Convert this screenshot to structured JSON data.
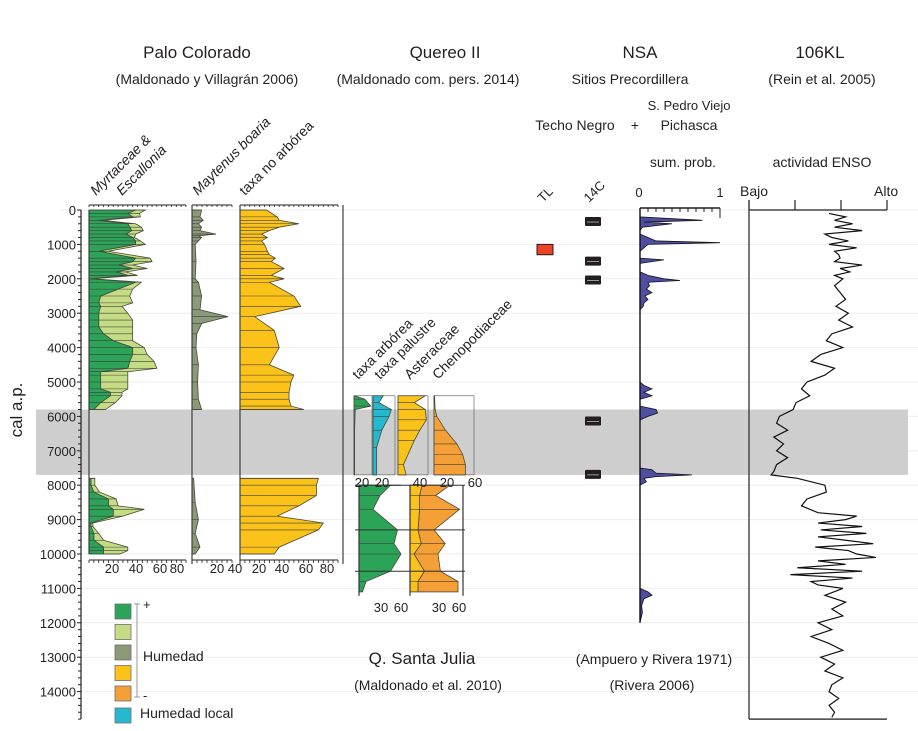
{
  "chart_data": {
    "type": "area",
    "title": "",
    "ylabel": "cal a.p.",
    "ylim": [
      0,
      14800
    ],
    "yticks": [
      0,
      1000,
      2000,
      3000,
      4000,
      5000,
      6000,
      7000,
      8000,
      9000,
      10000,
      11000,
      12000,
      13000,
      14000
    ],
    "gap_band": {
      "from": 5800,
      "to": 7700
    },
    "colors": {
      "dark_green": "#2ba457",
      "light_green": "#c4dd84",
      "grey_green": "#8a9a78",
      "yellow": "#fbc31a",
      "orange": "#f5a037",
      "cyan": "#24b9d0",
      "red": "#ee4127",
      "blue": "#4e4fa3",
      "band": "#cfcece"
    },
    "sites": [
      {
        "name": "Palo Colorado",
        "ref": "(Maldonado y Villagrán 2006)"
      },
      {
        "name": "Quereo II",
        "ref": "(Maldonado com. pers. 2014)"
      },
      {
        "name": "NSA",
        "ref": "Sitios Precordillera"
      },
      {
        "name": "106KL",
        "ref": "(Rein et al. 2005)"
      }
    ],
    "nsa_sites": {
      "left": "Techo Negro",
      "plus": "+",
      "top": "S. Pedro Viejo",
      "right": "Pichasca"
    },
    "palo_colorado": {
      "myrtaceae": {
        "label1": "Myrtaceae &",
        "label2": "Escallonia",
        "ticks": [
          "20",
          "40",
          "60",
          "80"
        ],
        "xlim": [
          0,
          100
        ],
        "ages": [
          0,
          100,
          200,
          300,
          400,
          500,
          600,
          700,
          800,
          900,
          1000,
          1200,
          1400,
          1500,
          1600,
          1700,
          1800,
          1900,
          2000,
          2100,
          2300,
          2500,
          2700,
          2800,
          3000,
          3200,
          3400,
          3600,
          3800,
          4000,
          4200,
          4400,
          4600,
          4700,
          4800,
          5000,
          5200,
          5300,
          5400,
          5600,
          5800,
          7800,
          8000,
          8200,
          8400,
          8600,
          8700,
          8900,
          9100,
          9200,
          9400,
          9600,
          9800,
          9900,
          10000
        ],
        "myrtaceae": [
          48,
          40,
          45,
          10,
          40,
          42,
          44,
          38,
          45,
          48,
          48,
          10,
          48,
          45,
          30,
          45,
          28,
          40,
          1,
          48,
          30,
          12,
          10,
          12,
          10,
          10,
          10,
          15,
          25,
          45,
          45,
          42,
          40,
          12,
          12,
          12,
          12,
          22,
          22,
          12,
          5,
          2,
          2,
          5,
          20,
          20,
          25,
          25,
          2,
          2,
          5,
          5,
          15,
          15,
          15
        ],
        "escallonia": [
          10,
          12,
          8,
          4,
          8,
          12,
          12,
          10,
          2,
          5,
          10,
          10,
          15,
          20,
          15,
          15,
          10,
          10,
          2,
          6,
          15,
          30,
          35,
          22,
          30,
          35,
          35,
          30,
          20,
          12,
          15,
          25,
          30,
          28,
          28,
          28,
          28,
          12,
          12,
          15,
          12,
          4,
          4,
          6,
          8,
          10,
          32,
          10,
          2,
          2,
          5,
          10,
          25,
          25,
          17
        ]
      },
      "maytenus": {
        "label": "Maytenus boaria",
        "ticks": [
          "20",
          "40"
        ],
        "xlim": [
          0,
          50
        ],
        "ages": [
          0,
          200,
          300,
          400,
          500,
          600,
          700,
          750,
          800,
          900,
          1000,
          1500,
          2000,
          2100,
          2500,
          2900,
          3100,
          3300,
          3600,
          4000,
          4500,
          5000,
          5500,
          5800,
          7800,
          8500,
          9000,
          9400,
          9800,
          10000
        ],
        "values": [
          12,
          10,
          14,
          8,
          12,
          10,
          30,
          8,
          12,
          8,
          4,
          5,
          4,
          8,
          12,
          10,
          45,
          12,
          6,
          5,
          8,
          7,
          8,
          12,
          2,
          4,
          8,
          4,
          10,
          4
        ]
      },
      "taxa_no_arborea": {
        "label": "taxa no arbórea",
        "ticks": [
          "20",
          "40",
          "60",
          "80"
        ],
        "xlim": [
          0,
          100
        ],
        "ages": [
          0,
          200,
          300,
          400,
          500,
          600,
          700,
          800,
          900,
          1000,
          1200,
          1300,
          1400,
          1500,
          1700,
          1900,
          2000,
          2100,
          2500,
          2800,
          3100,
          3500,
          4000,
          4500,
          4800,
          5000,
          5300,
          5500,
          5700,
          5800,
          7800,
          8000,
          8300,
          8600,
          8900,
          9100,
          9300,
          9800,
          10000
        ],
        "values": [
          27,
          38,
          40,
          60,
          40,
          30,
          22,
          28,
          22,
          25,
          28,
          30,
          36,
          32,
          45,
          32,
          45,
          30,
          55,
          62,
          15,
          35,
          40,
          30,
          55,
          52,
          50,
          50,
          52,
          65,
          80,
          78,
          78,
          60,
          38,
          85,
          80,
          40,
          35
        ]
      }
    },
    "quereo": {
      "taxa_arborea": {
        "label": "taxa arbórea",
        "ticks": [
          "20"
        ],
        "xlim": [
          0,
          30
        ],
        "ages": [
          5400,
          5500,
          5700,
          5800,
          6400,
          7700
        ],
        "values": [
          1,
          18,
          28,
          2,
          1,
          1
        ]
      },
      "taxa_palustre": {
        "label": "taxa palustre",
        "ticks": [
          "20"
        ],
        "xlim": [
          0,
          30
        ],
        "ages": [
          5400,
          5600,
          5800,
          6000,
          6400,
          6900,
          7700
        ],
        "values": [
          14,
          8,
          25,
          22,
          12,
          5,
          5
        ]
      },
      "asteraceae": {
        "label": "Asteraceae",
        "ticks": [
          "40"
        ],
        "xlim": [
          0,
          55
        ],
        "ages": [
          5400,
          5600,
          5800,
          6100,
          6400,
          6700,
          7400,
          7700
        ],
        "values": [
          50,
          30,
          50,
          52,
          40,
          30,
          10,
          15
        ]
      },
      "chenopodiaceae": {
        "label": "Chenopodiaceae",
        "ticks": [
          "20",
          "60"
        ],
        "xlim": [
          0,
          70
        ],
        "ages": [
          5400,
          5800,
          6000,
          6400,
          6800,
          7100,
          7400,
          7700
        ],
        "values": [
          1,
          2,
          5,
          20,
          40,
          50,
          55,
          55
        ]
      }
    },
    "santa_julia": {
      "title": "Q. Santa Julia",
      "ref": "(Maldonado et al. 2010)",
      "ticks": [
        "30",
        "60"
      ],
      "green": {
        "ages": [
          8000,
          8300,
          8700,
          9300,
          9700,
          10000,
          10500,
          10800,
          11100
        ],
        "values": [
          45,
          30,
          20,
          55,
          50,
          60,
          45,
          10,
          5
        ]
      },
      "yellow": {
        "ages": [
          8000,
          8300,
          8700,
          9300,
          9700,
          10000,
          10500,
          10800,
          11100
        ],
        "values": [
          15,
          12,
          12,
          10,
          14,
          5,
          18,
          10,
          10
        ]
      },
      "orange": {
        "ages": [
          8000,
          8300,
          8700,
          9300,
          9700,
          10000,
          10500,
          10800,
          11100
        ],
        "values": [
          35,
          20,
          50,
          20,
          30,
          30,
          20,
          50,
          50
        ]
      }
    },
    "nsa": {
      "tl_label": "TL",
      "c14_label": "14C",
      "sum_prob_label": "sum. prob.",
      "sum_prob_ticks": [
        "0",
        "1"
      ],
      "tl_dates": [
        {
          "from": 1000,
          "to": 1300
        }
      ],
      "c14_dates": [
        350,
        1500,
        2050,
        6150,
        7700
      ],
      "sum_prob": {
        "ages": [
          0,
          200,
          300,
          350,
          400,
          500,
          600,
          700,
          800,
          900,
          950,
          1000,
          1100,
          1200,
          1300,
          1400,
          1450,
          1500,
          1550,
          1650,
          1800,
          1900,
          2000,
          2050,
          2100,
          2200,
          2300,
          2400,
          2500,
          2600,
          2700,
          2800,
          2900,
          3000,
          5000,
          5100,
          5200,
          5300,
          5400,
          5500,
          5700,
          5800,
          5900,
          6000,
          6100,
          7500,
          7550,
          7650,
          7700,
          7750,
          7800,
          7900,
          8000,
          11000,
          11100,
          11200,
          11300,
          11500,
          11700,
          12000
        ],
        "values": [
          0,
          0,
          0.78,
          0.05,
          0.4,
          0.03,
          0,
          0,
          0.1,
          0.2,
          1.0,
          0.1,
          0.05,
          0,
          0,
          0,
          0.3,
          0.15,
          0,
          0,
          0,
          0.1,
          0.3,
          0.5,
          0.1,
          0.12,
          0.08,
          0.15,
          0.06,
          0.1,
          0.05,
          0.04,
          0,
          0,
          0,
          0.05,
          0.15,
          0.05,
          0.15,
          0,
          0,
          0.2,
          0.22,
          0.1,
          0,
          0,
          0.15,
          0.2,
          0.65,
          0.2,
          0.05,
          0.08,
          0,
          0,
          0.1,
          0.15,
          0.05,
          0.02,
          0.03,
          0
        ]
      },
      "ref1": "(Ampuero y Rivera 1971)",
      "ref2": "(Rivera 2006)"
    },
    "kl106": {
      "label": "actividad ENSO",
      "low": "Bajo",
      "high": "Alto",
      "xlim": [
        0,
        1
      ],
      "ages": [
        100,
        200,
        300,
        400,
        500,
        600,
        700,
        800,
        900,
        1000,
        1100,
        1200,
        1300,
        1400,
        1500,
        1600,
        1700,
        1800,
        1900,
        2000,
        2200,
        2400,
        2600,
        2800,
        3000,
        3200,
        3400,
        3600,
        3800,
        4000,
        4200,
        4400,
        4600,
        4800,
        5000,
        5200,
        5400,
        5600,
        5800,
        6000,
        6200,
        6400,
        6600,
        6800,
        7000,
        7200,
        7400,
        7600,
        7700,
        7800,
        8000,
        8200,
        8400,
        8600,
        8800,
        8900,
        9000,
        9100,
        9200,
        9300,
        9400,
        9500,
        9600,
        9700,
        9800,
        9900,
        10000,
        10100,
        10200,
        10300,
        10400,
        10500,
        10600,
        10700,
        10800,
        10900,
        11000,
        11200,
        11400,
        11600,
        11800,
        12000,
        12200,
        12400,
        12600,
        12800,
        13000,
        13200,
        13400,
        13600,
        13800,
        14000,
        14200,
        14400,
        14600,
        14750
      ],
      "values": [
        0.58,
        0.7,
        0.62,
        0.75,
        0.62,
        0.82,
        0.55,
        0.6,
        0.72,
        0.58,
        0.78,
        0.62,
        0.65,
        0.66,
        0.62,
        0.82,
        0.66,
        0.73,
        0.62,
        0.68,
        0.62,
        0.66,
        0.7,
        0.63,
        0.72,
        0.65,
        0.75,
        0.6,
        0.56,
        0.68,
        0.52,
        0.45,
        0.62,
        0.55,
        0.42,
        0.38,
        0.44,
        0.34,
        0.32,
        0.22,
        0.2,
        0.28,
        0.18,
        0.25,
        0.2,
        0.28,
        0.2,
        0.18,
        0.16,
        0.35,
        0.55,
        0.56,
        0.42,
        0.38,
        0.5,
        0.78,
        0.7,
        0.5,
        0.82,
        0.52,
        0.85,
        0.5,
        0.7,
        0.9,
        0.48,
        0.72,
        0.78,
        0.92,
        0.5,
        0.7,
        0.35,
        0.82,
        0.3,
        0.75,
        0.45,
        0.5,
        0.68,
        0.55,
        0.7,
        0.6,
        0.68,
        0.5,
        0.6,
        0.45,
        0.58,
        0.68,
        0.52,
        0.62,
        0.55,
        0.68,
        0.6,
        0.58,
        0.65,
        0.58,
        0.62,
        0.6
      ]
    },
    "legend": {
      "title": "Humedad",
      "plus": "+",
      "minus": "-",
      "local_label": "Humedad local",
      "swatches": [
        "dark_green",
        "light_green",
        "grey_green",
        "yellow",
        "orange"
      ],
      "local_swatch": "cyan"
    }
  }
}
